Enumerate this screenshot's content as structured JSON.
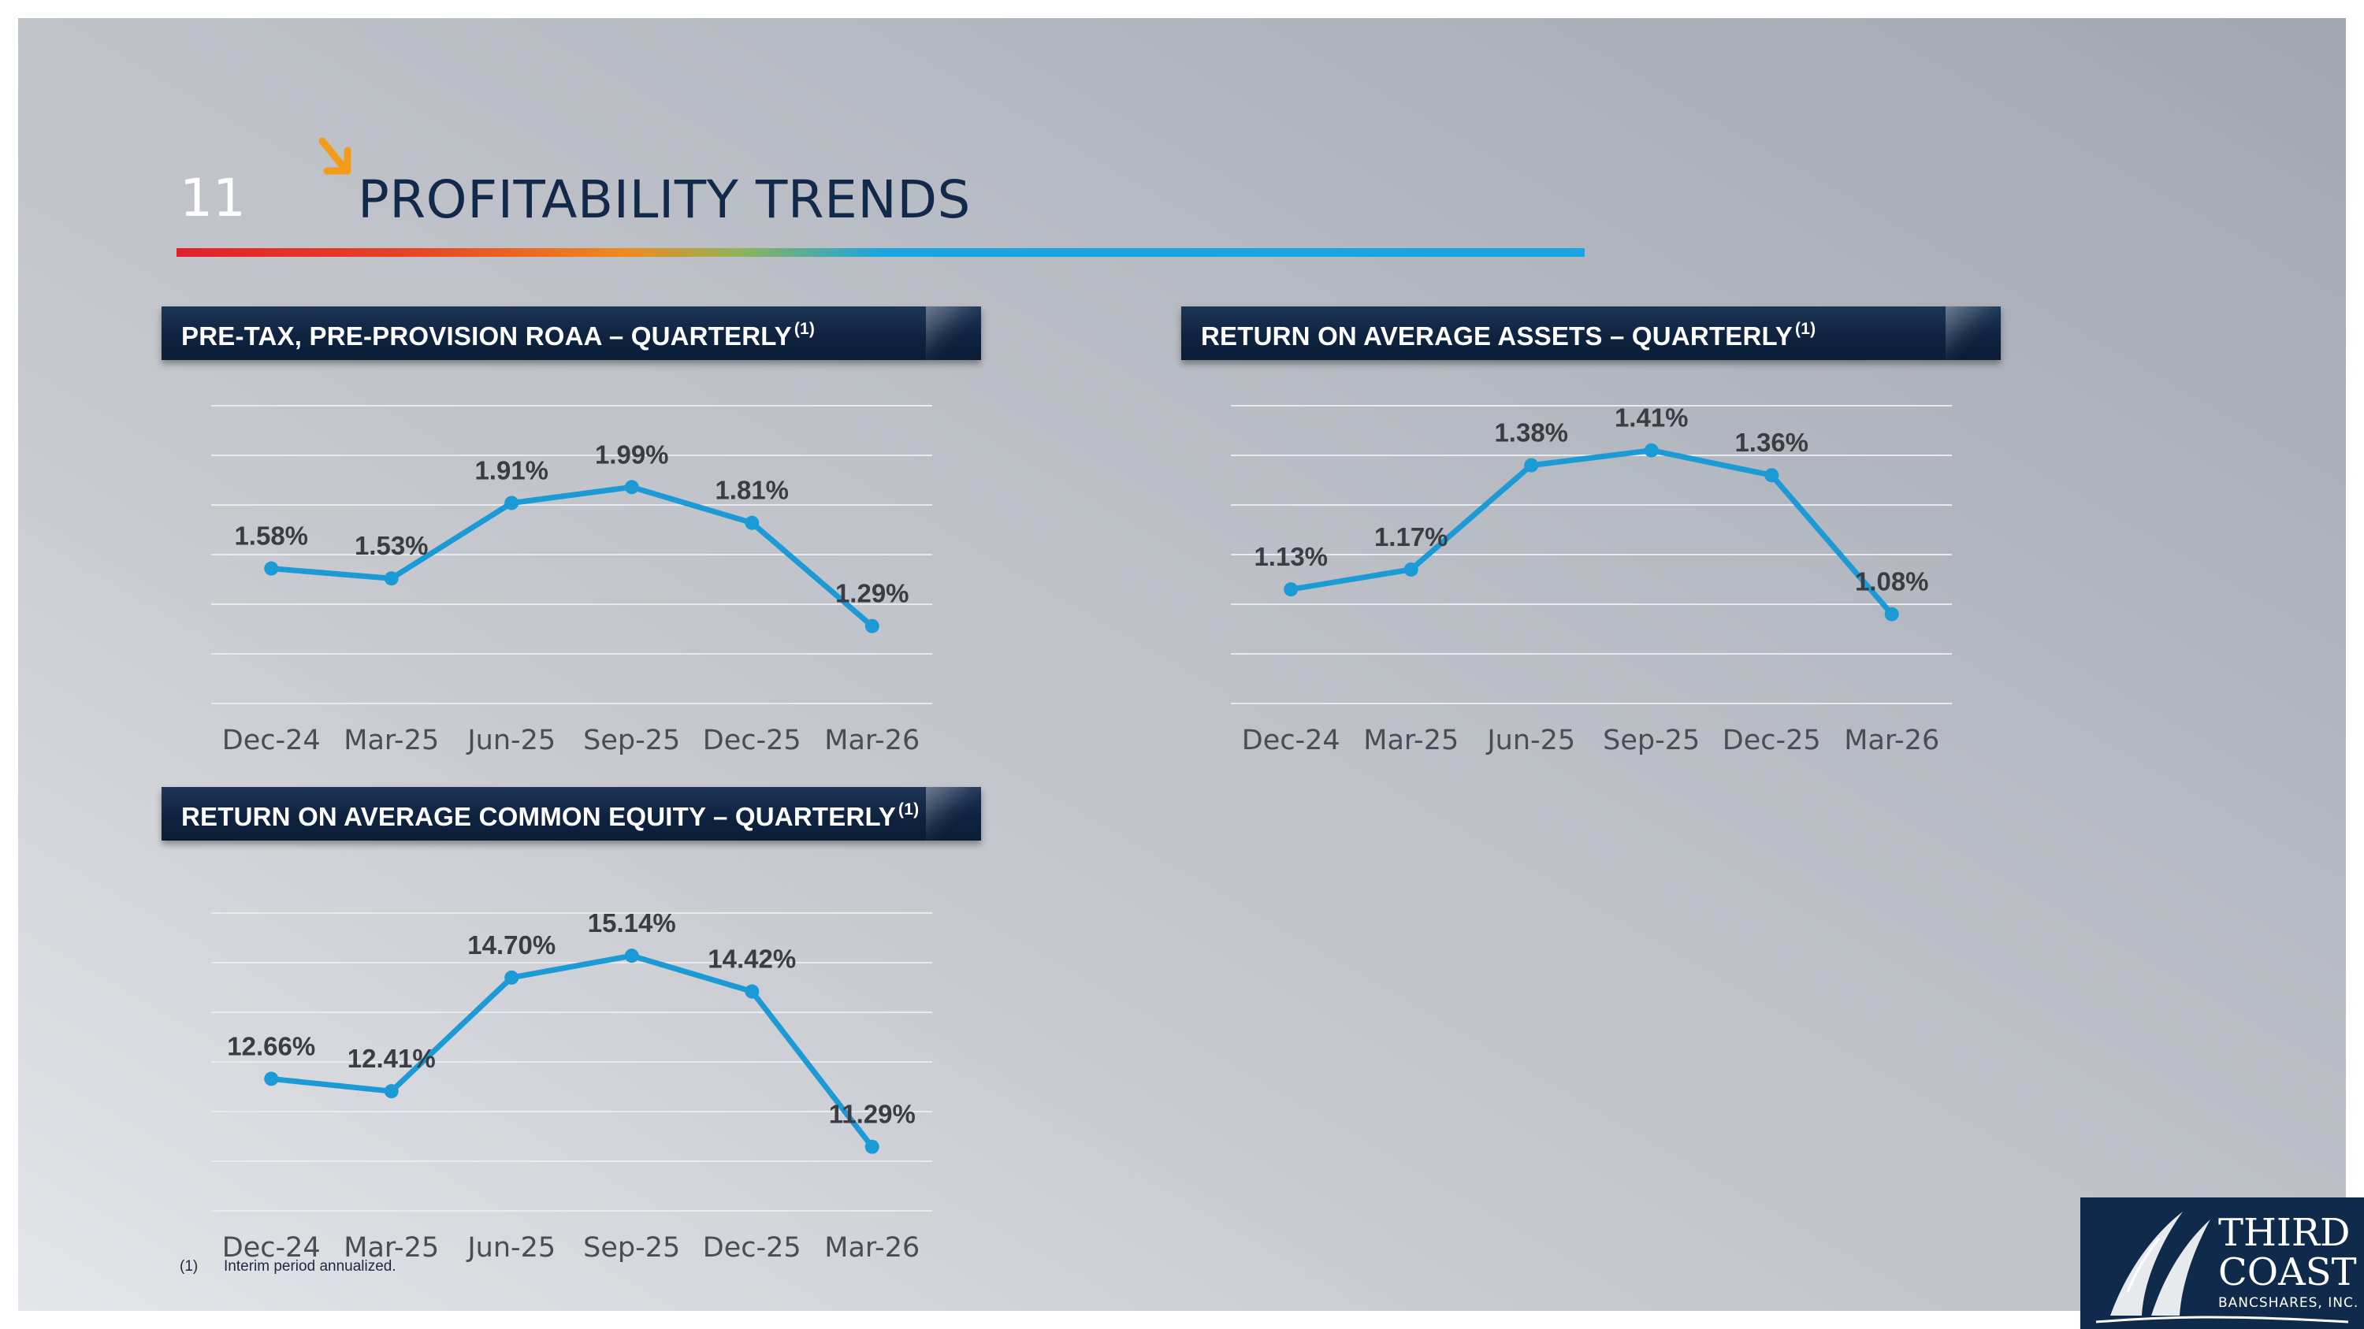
{
  "slide": {
    "number": "11",
    "title": "PROFITABILITY TRENDS",
    "footnote_marker": "(1)",
    "footnote_text": "Interim period annualized."
  },
  "logo": {
    "line1": "THIRD",
    "line2": "COAST",
    "line3": "BANCSHARES, INC."
  },
  "colors": {
    "series_line": "#1b9ad6",
    "header_bg": "#0f2340",
    "title_text": "#13294a",
    "accent_orange": "#f39c1a"
  },
  "chart_data": [
    {
      "type": "line",
      "title": "PRE-TAX, PRE-PROVISION ROAA – QUARTERLY",
      "title_note": "(1)",
      "categories": [
        "Dec-24",
        "Mar-25",
        "Jun-25",
        "Sep-25",
        "Dec-25",
        "Mar-26"
      ],
      "values": [
        1.58,
        1.53,
        1.91,
        1.99,
        1.81,
        1.29
      ],
      "data_labels": [
        "1.58%",
        "1.53%",
        "1.91%",
        "1.99%",
        "1.81%",
        "1.29%"
      ],
      "ylim": [
        0.9,
        2.4
      ],
      "grid": true,
      "legend": "none"
    },
    {
      "type": "line",
      "title": "RETURN ON AVERAGE ASSETS – QUARTERLY",
      "title_note": "(1)",
      "categories": [
        "Dec-24",
        "Mar-25",
        "Jun-25",
        "Sep-25",
        "Dec-25",
        "Mar-26"
      ],
      "values": [
        1.13,
        1.17,
        1.38,
        1.41,
        1.36,
        1.08
      ],
      "data_labels": [
        "1.13%",
        "1.17%",
        "1.38%",
        "1.41%",
        "1.36%",
        "1.08%"
      ],
      "ylim": [
        0.9,
        1.5
      ],
      "grid": true,
      "legend": "none"
    },
    {
      "type": "line",
      "title": "RETURN ON AVERAGE COMMON EQUITY – QUARTERLY",
      "title_note": "(1)",
      "categories": [
        "Dec-24",
        "Mar-25",
        "Jun-25",
        "Sep-25",
        "Dec-25",
        "Mar-26"
      ],
      "values": [
        12.66,
        12.41,
        14.7,
        15.14,
        14.42,
        11.29
      ],
      "data_labels": [
        "12.66%",
        "12.41%",
        "14.70%",
        "15.14%",
        "14.42%",
        "11.29%"
      ],
      "ylim": [
        10,
        16
      ],
      "grid": true,
      "legend": "none"
    }
  ]
}
